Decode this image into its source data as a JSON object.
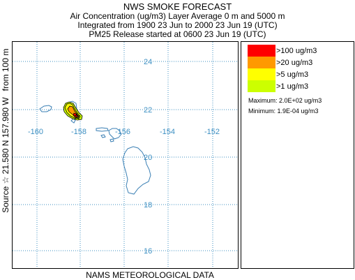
{
  "header": {
    "title": "NWS SMOKE FORECAST",
    "line1": "Air Concentration (ug/m3) Layer Average    0 m and  5000 m",
    "line2": "Integrated from 1900 23 Jun to 2000 23 Jun 19 (UTC)",
    "line3": "PM25 Release started at 0600 23 Jun 19 (UTC)"
  },
  "side_labels": {
    "source": "Source ☆ 21.580 N 157.980  W",
    "height": "from  100 m"
  },
  "footer": "NAMS METEOROLOGICAL DATA",
  "map": {
    "latitude_labels": [
      "24",
      "22",
      "20",
      "18",
      "16"
    ],
    "longitude_labels": [
      "-160",
      "-158",
      "-156",
      "-154",
      "-152"
    ],
    "gridline_color": "#3c8fc2",
    "coast_color": "#3a7fb4",
    "source_marker": "star-icon"
  },
  "legend": {
    "items": [
      {
        "label": ">100 ug/m3",
        "color": "#ff0000"
      },
      {
        "label": ">20 ug/m3",
        "color": "#ff9900"
      },
      {
        "label": ">5 ug/m3",
        "color": "#ffff00"
      },
      {
        "label": ">1 ug/m3",
        "color": "#ccff00"
      }
    ],
    "maximum": "Maximum: 2.0E+02 ug/m3",
    "minimum": "Minimum: 1.9E-04 ug/m3"
  }
}
